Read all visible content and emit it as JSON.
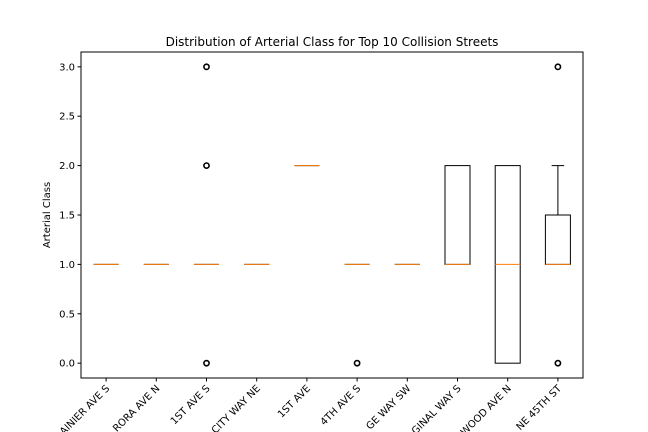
{
  "chart_data": {
    "type": "box",
    "title": "Distribution of Arterial Class for Top 10 Collision Streets",
    "xlabel": "",
    "ylabel": "Arterial Class",
    "ylim": [
      -0.15,
      3.15
    ],
    "yticks": [
      0.0,
      0.5,
      1.0,
      1.5,
      2.0,
      2.5,
      3.0
    ],
    "ytick_labels": [
      "0.0",
      "0.5",
      "1.0",
      "1.5",
      "2.0",
      "2.5",
      "3.0"
    ],
    "grid": false,
    "categories": [
      "RAINIER AVE S",
      "AURORA AVE N",
      "1ST AVE S",
      "UNIVERSITY WAY NE",
      "1ST AVE",
      "4TH AVE S",
      "BRIDGE WAY SW",
      "MARGINAL WAY S",
      "LAKE CITY WAY / GREENWOOD AVE N",
      "NE 45TH ST"
    ],
    "category_labels_visible": [
      "AINIER AVE S",
      "RORA AVE N",
      "1ST AVE S",
      "CITY WAY NE",
      "1ST AVE",
      "4TH AVE S",
      "GE WAY SW",
      "GINAL WAY S",
      "WOOD AVE N",
      "NE 45TH ST"
    ],
    "boxes": [
      {
        "q1": 1,
        "median": 1,
        "q3": 1,
        "whisker_low": 1,
        "whisker_high": 1,
        "outliers": []
      },
      {
        "q1": 1,
        "median": 1,
        "q3": 1,
        "whisker_low": 1,
        "whisker_high": 1,
        "outliers": []
      },
      {
        "q1": 1,
        "median": 1,
        "q3": 1,
        "whisker_low": 1,
        "whisker_high": 1,
        "outliers": [
          0,
          2,
          3
        ]
      },
      {
        "q1": 1,
        "median": 1,
        "q3": 1,
        "whisker_low": 1,
        "whisker_high": 1,
        "outliers": []
      },
      {
        "q1": 2,
        "median": 2,
        "q3": 2,
        "whisker_low": 2,
        "whisker_high": 2,
        "outliers": []
      },
      {
        "q1": 1,
        "median": 1,
        "q3": 1,
        "whisker_low": 1,
        "whisker_high": 1,
        "outliers": [
          0
        ]
      },
      {
        "q1": 1,
        "median": 1,
        "q3": 1,
        "whisker_low": 1,
        "whisker_high": 1,
        "outliers": []
      },
      {
        "q1": 1,
        "median": 1,
        "q3": 2,
        "whisker_low": 1,
        "whisker_high": 2,
        "outliers": []
      },
      {
        "q1": 0,
        "median": 1,
        "q3": 2,
        "whisker_low": 0,
        "whisker_high": 2,
        "outliers": []
      },
      {
        "q1": 1,
        "median": 1,
        "q3": 1.5,
        "whisker_low": 1,
        "whisker_high": 2,
        "outliers": [
          0,
          3
        ]
      }
    ],
    "colors": {
      "box": "#000000",
      "median": "#ff7f0e",
      "outlier": "#000000"
    }
  }
}
